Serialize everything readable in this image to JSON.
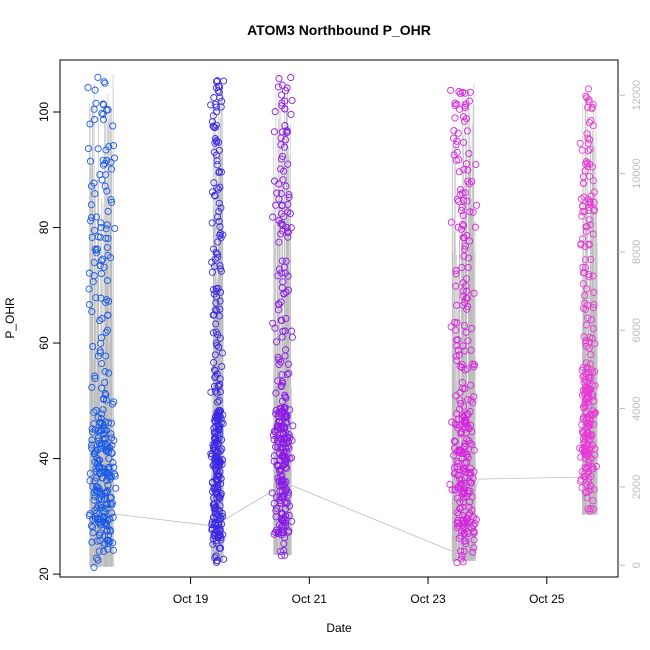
{
  "chart_data": {
    "type": "scatter",
    "title": "ATOM3 Northbound P_OHR",
    "xlabel": "Date",
    "ylabel": "P_OHR",
    "x_ticks": [
      {
        "label": "Oct 19",
        "day": 19
      },
      {
        "label": "Oct 21",
        "day": 21
      },
      {
        "label": "Oct 23",
        "day": 23
      },
      {
        "label": "Oct 25",
        "day": 25
      }
    ],
    "xlim_days": [
      16.8,
      26.2
    ],
    "ylim": [
      19.5,
      109
    ],
    "y_ticks": [
      20,
      40,
      60,
      80,
      100
    ],
    "y2_ticks": [
      0,
      2000,
      4000,
      6000,
      8000,
      10000,
      12000
    ],
    "y2lim": [
      -300,
      12900
    ],
    "colors": {
      "c1": "#1a5ae8",
      "c2": "#3a28e6",
      "c3": "#8a1ae6",
      "c4": "#d822e2",
      "c5": "#e83ad6",
      "secondary": "#bdbdbd",
      "axis": "#000000"
    },
    "clusters": [
      {
        "center": 17.5,
        "day_start": 17.3,
        "day_end": 17.7,
        "color": "c1",
        "y_min": 21,
        "y_max": 107
      },
      {
        "center": 19.45,
        "day_start": 19.35,
        "day_end": 19.55,
        "color": "c2",
        "y_min": 22,
        "y_max": 106
      },
      {
        "center": 20.55,
        "day_start": 20.4,
        "day_end": 20.7,
        "color": "c3",
        "y_min": 23,
        "y_max": 107
      },
      {
        "center": 23.6,
        "day_start": 23.4,
        "day_end": 23.8,
        "color": "c4",
        "y_min": 22,
        "y_max": 105
      },
      {
        "center": 25.7,
        "day_start": 25.6,
        "day_end": 25.85,
        "color": "c5",
        "y_min": 30,
        "y_max": 105
      }
    ],
    "secondary_series": {
      "name": "",
      "x": [
        17.45,
        17.75,
        19.4,
        20.6,
        23.5,
        23.85,
        25.6,
        25.85
      ],
      "y": [
        1500,
        1300,
        1000,
        2100,
        300,
        2200,
        2250,
        2250
      ]
    }
  }
}
